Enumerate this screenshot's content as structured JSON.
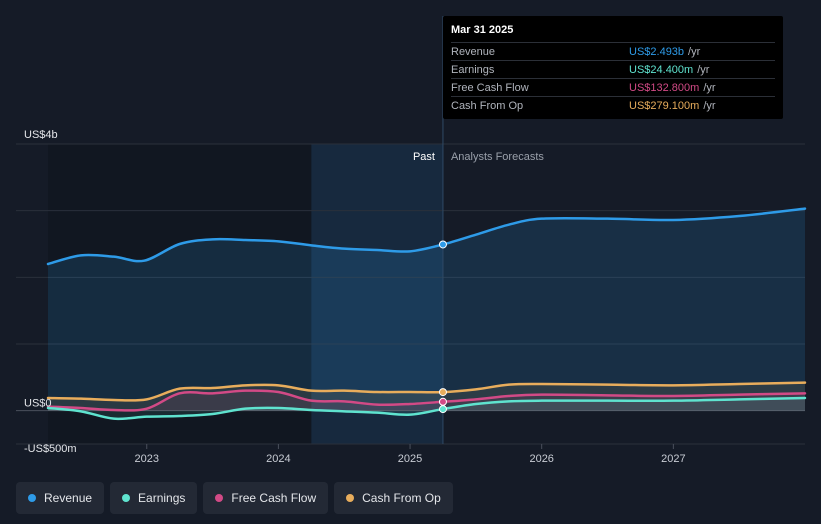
{
  "colors": {
    "revenue": "#2e9be8",
    "earnings": "#5fe3cf",
    "free_cash_flow": "#d24a86",
    "cash_from_op": "#e8ad5c",
    "grid": "#2a303b",
    "text": "#c8ccd4"
  },
  "tooltip": {
    "date": "Mar 31 2025",
    "rows": [
      {
        "label": "Revenue",
        "value": "US$2.493b",
        "unit": "/yr",
        "color": "#2e9be8"
      },
      {
        "label": "Earnings",
        "value": "US$24.400m",
        "unit": "/yr",
        "color": "#5fe3cf"
      },
      {
        "label": "Free Cash Flow",
        "value": "US$132.800m",
        "unit": "/yr",
        "color": "#d24a86"
      },
      {
        "label": "Cash From Op",
        "value": "US$279.100m",
        "unit": "/yr",
        "color": "#e8ad5c"
      }
    ]
  },
  "legend": [
    {
      "label": "Revenue",
      "color": "#2e9be8"
    },
    {
      "label": "Earnings",
      "color": "#5fe3cf"
    },
    {
      "label": "Free Cash Flow",
      "color": "#d24a86"
    },
    {
      "label": "Cash From Op",
      "color": "#e8ad5c"
    }
  ],
  "chart_data": {
    "type": "line",
    "title": "",
    "xlabel": "",
    "ylabel": "",
    "y_unit": "US$ millions",
    "xlim": [
      2022.25,
      2028.0
    ],
    "ylim": [
      -500,
      4000
    ],
    "y_ticks": [
      {
        "value": 4000,
        "label": "US$4b"
      },
      {
        "value": 0,
        "label": "US$0"
      },
      {
        "value": -500,
        "label": "-US$500m"
      }
    ],
    "y_gridlines": [
      4000,
      3000,
      2000,
      1000,
      0
    ],
    "x_ticks": [
      {
        "value": 2023,
        "label": "2023"
      },
      {
        "value": 2024,
        "label": "2024"
      },
      {
        "value": 2025,
        "label": "2025"
      },
      {
        "value": 2026,
        "label": "2026"
      },
      {
        "value": 2027,
        "label": "2027"
      }
    ],
    "highlight_range": [
      2024.25,
      2025.25
    ],
    "divider_x": 2025.25,
    "past_label": "Past",
    "forecast_label": "Analysts Forecasts",
    "series": [
      {
        "name": "Revenue",
        "key": "revenue",
        "fill": true,
        "points": [
          [
            2022.25,
            2200
          ],
          [
            2022.5,
            2330
          ],
          [
            2022.75,
            2310
          ],
          [
            2022.98,
            2250
          ],
          [
            2023.25,
            2500
          ],
          [
            2023.5,
            2570
          ],
          [
            2023.75,
            2560
          ],
          [
            2024.0,
            2540
          ],
          [
            2024.25,
            2480
          ],
          [
            2024.5,
            2430
          ],
          [
            2024.75,
            2410
          ],
          [
            2025.0,
            2390
          ],
          [
            2025.25,
            2493
          ],
          [
            2025.5,
            2640
          ],
          [
            2025.75,
            2790
          ],
          [
            2026.0,
            2880
          ],
          [
            2026.5,
            2880
          ],
          [
            2027.0,
            2860
          ],
          [
            2027.5,
            2920
          ],
          [
            2028.0,
            3030
          ]
        ]
      },
      {
        "name": "Cash From Op",
        "key": "cash_from_op",
        "fill": false,
        "points": [
          [
            2022.25,
            190
          ],
          [
            2022.5,
            180
          ],
          [
            2022.75,
            160
          ],
          [
            2023.0,
            170
          ],
          [
            2023.25,
            330
          ],
          [
            2023.5,
            340
          ],
          [
            2023.75,
            380
          ],
          [
            2024.0,
            380
          ],
          [
            2024.25,
            300
          ],
          [
            2024.5,
            300
          ],
          [
            2024.75,
            280
          ],
          [
            2025.0,
            280
          ],
          [
            2025.25,
            279
          ],
          [
            2025.5,
            320
          ],
          [
            2025.75,
            390
          ],
          [
            2026.0,
            400
          ],
          [
            2026.5,
            390
          ],
          [
            2027.0,
            380
          ],
          [
            2027.5,
            400
          ],
          [
            2028.0,
            420
          ]
        ]
      },
      {
        "name": "Free Cash Flow",
        "key": "free_cash_flow",
        "fill": false,
        "points": [
          [
            2022.25,
            60
          ],
          [
            2022.5,
            40
          ],
          [
            2022.75,
            10
          ],
          [
            2023.0,
            30
          ],
          [
            2023.25,
            260
          ],
          [
            2023.5,
            260
          ],
          [
            2023.75,
            300
          ],
          [
            2024.0,
            280
          ],
          [
            2024.25,
            150
          ],
          [
            2024.5,
            140
          ],
          [
            2024.75,
            90
          ],
          [
            2025.0,
            100
          ],
          [
            2025.25,
            133
          ],
          [
            2025.5,
            170
          ],
          [
            2025.75,
            220
          ],
          [
            2026.0,
            240
          ],
          [
            2026.5,
            230
          ],
          [
            2027.0,
            220
          ],
          [
            2027.5,
            240
          ],
          [
            2028.0,
            260
          ]
        ]
      },
      {
        "name": "Earnings",
        "key": "earnings",
        "fill": false,
        "points": [
          [
            2022.25,
            40
          ],
          [
            2022.5,
            -10
          ],
          [
            2022.75,
            -120
          ],
          [
            2023.0,
            -90
          ],
          [
            2023.25,
            -80
          ],
          [
            2023.5,
            -50
          ],
          [
            2023.75,
            30
          ],
          [
            2024.0,
            40
          ],
          [
            2024.25,
            10
          ],
          [
            2024.5,
            -10
          ],
          [
            2024.75,
            -30
          ],
          [
            2025.0,
            -60
          ],
          [
            2025.25,
            24
          ],
          [
            2025.5,
            100
          ],
          [
            2025.75,
            140
          ],
          [
            2026.0,
            150
          ],
          [
            2026.5,
            150
          ],
          [
            2027.0,
            150
          ],
          [
            2027.5,
            170
          ],
          [
            2028.0,
            190
          ]
        ]
      }
    ],
    "markers_at": 2025.25
  }
}
